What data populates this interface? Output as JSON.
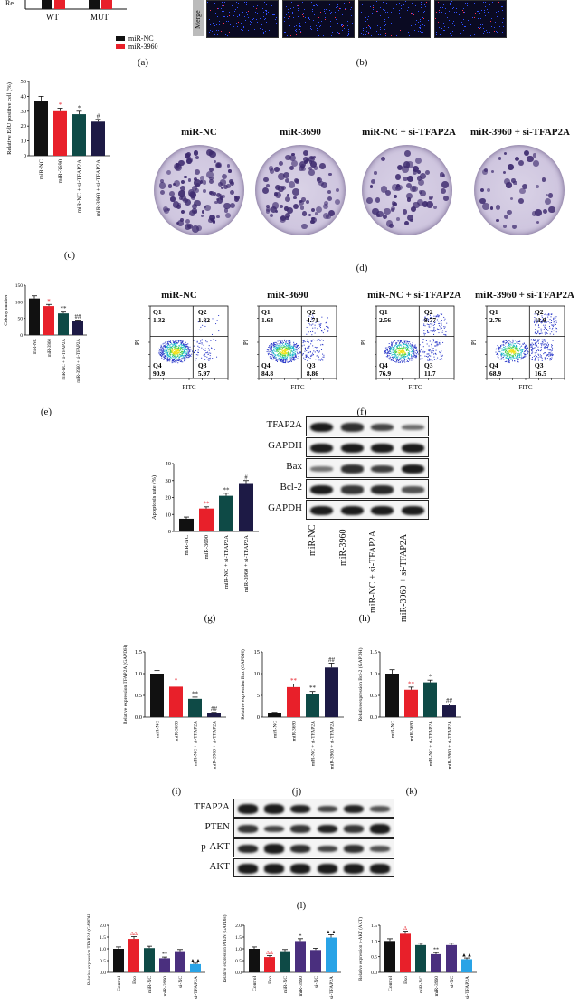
{
  "panel_labels": {
    "a": "(a)",
    "b": "(b)",
    "c": "(c)",
    "d": "(d)",
    "e": "(e)",
    "f": "(f)",
    "g": "(g)",
    "h": "(h)",
    "i": "(i)",
    "j": "(j)",
    "k": "(k)",
    "l": "(l)"
  },
  "colors": {
    "black": "#111111",
    "red": "#e8202a",
    "teal": "#0e4a46",
    "navy": "#1d1a45",
    "purple": "#4a2f7e",
    "blue": "#29a3e6"
  },
  "panel_a": {
    "categories": [
      "WT",
      "MUT"
    ],
    "legend": [
      "miR-NC",
      "miR-3960"
    ],
    "ylabel": "Re"
  },
  "panel_b": {
    "label": "Merge"
  },
  "panel_c": {
    "chart_data": {
      "type": "bar",
      "categories": [
        "miR-NC",
        "miR-3690",
        "miR-NC + si-TFAP2A",
        "miR-3960 + si-TFAP2A"
      ],
      "values": [
        37,
        30,
        28,
        23
      ],
      "errors": [
        3,
        2,
        2,
        1.5
      ],
      "sig": [
        "",
        "*",
        "*",
        "#"
      ],
      "ylabel": "Relative EdU positive cell (%)",
      "ylim": [
        0,
        50
      ],
      "yticks": [
        "0",
        "10",
        "20",
        "30",
        "40",
        "50"
      ]
    }
  },
  "panel_d": {
    "titles": [
      "miR-NC",
      "miR-3690",
      "miR-NC + si-TFAP2A",
      "miR-3960 + si-TFAP2A"
    ]
  },
  "panel_e": {
    "chart_data": {
      "type": "bar",
      "categories": [
        "miR-NC",
        "miR-3960",
        "miR-NC + si-TFAP2A",
        "miR-3960 + si-TFAP2A"
      ],
      "values": [
        110,
        87,
        65,
        42
      ],
      "errors": [
        8,
        5,
        4,
        3
      ],
      "sig": [
        "",
        "*",
        "**",
        "##"
      ],
      "ylabel": "Colony number",
      "ylim": [
        0,
        150
      ],
      "yticks": [
        "0",
        "50",
        "100",
        "150"
      ]
    }
  },
  "panel_f": {
    "titles": [
      "miR-NC",
      "miR-3690",
      "miR-NC + si-TFAP2A",
      "miR-3960 + si-TFAP2A"
    ],
    "xlabel": "FITC",
    "ylabel": "PI",
    "quadrants": [
      {
        "q1": "1.32",
        "q2": "1.82",
        "q3": "5.97",
        "q4": "90.9"
      },
      {
        "q1": "1.63",
        "q2": "4.71",
        "q3": "8.86",
        "q4": "84.8"
      },
      {
        "q1": "2.56",
        "q2": "8.77",
        "q3": "11.7",
        "q4": "76.9"
      },
      {
        "q1": "2.76",
        "q2": "11.9",
        "q3": "16.5",
        "q4": "68.9"
      }
    ],
    "qnames": [
      "Q1",
      "Q2",
      "Q3",
      "Q4"
    ]
  },
  "panel_g": {
    "chart_data": {
      "type": "bar",
      "categories": [
        "miR-NC",
        "miR-3690",
        "miR-NC + si-TFAP2A",
        "miR-3960 + si-TFAP2A"
      ],
      "values": [
        7.5,
        13.5,
        21,
        28
      ],
      "errors": [
        1,
        1,
        1.5,
        2
      ],
      "sig": [
        "",
        "**",
        "**",
        "#"
      ],
      "ylabel": "Apoptosis rate (%)",
      "ylim": [
        0,
        40
      ],
      "yticks": [
        "0",
        "10",
        "20",
        "30",
        "40"
      ]
    }
  },
  "panel_h": {
    "rows": [
      "TFAP2A",
      "GAPDH",
      "Bax",
      "Bcl-2",
      "GAPDH"
    ],
    "lanes": [
      "miR-NC",
      "miR-3960",
      "miR-NC + si-TFAP2A",
      "miR-3960 + si-TFAP2A"
    ]
  },
  "panel_i": {
    "chart_data": {
      "type": "bar",
      "categories": [
        "miR-NC",
        "miR-3690",
        "miR-NC + si-TFAP2A",
        "miR-3960 + si-TFAP2A"
      ],
      "values": [
        1.0,
        0.7,
        0.42,
        0.09
      ],
      "errors": [
        0.07,
        0.06,
        0.04,
        0.02
      ],
      "sig": [
        "",
        "*",
        "**",
        "##"
      ],
      "ylabel": "Relative expression TFAP2A (GAPDH)",
      "ylim": [
        0,
        1.5
      ],
      "yticks": [
        "0.0",
        "0.5",
        "1.0",
        "1.5"
      ]
    }
  },
  "panel_j": {
    "chart_data": {
      "type": "bar",
      "categories": [
        "miR-NC",
        "miR-3690",
        "miR-NC + si-TFAP2A",
        "miR-3960 + si-TFAP2A"
      ],
      "values": [
        1.0,
        6.9,
        5.3,
        11.4
      ],
      "errors": [
        0.1,
        0.7,
        0.6,
        1.0
      ],
      "sig": [
        "",
        "**",
        "**",
        "##"
      ],
      "ylabel": "Relative expression Bax (GAPDH)",
      "ylim": [
        0,
        15
      ],
      "yticks": [
        "0",
        "5",
        "10",
        "15"
      ]
    }
  },
  "panel_k": {
    "chart_data": {
      "type": "bar",
      "categories": [
        "miR-NC",
        "miR-3690",
        "miR-NC + si-TFAP2A",
        "miR-3960 + si-TFAP2A"
      ],
      "values": [
        1.0,
        0.63,
        0.8,
        0.27
      ],
      "errors": [
        0.09,
        0.06,
        0.05,
        0.03
      ],
      "sig": [
        "",
        "**",
        "*",
        "##"
      ],
      "ylabel": "Relative expression Bcl-2 (GAPDH)",
      "ylim": [
        0,
        1.5
      ],
      "yticks": [
        "0.0",
        "0.5",
        "1.0",
        "1.5"
      ]
    }
  },
  "panel_l": {
    "rows": [
      "TFAP2A",
      "PTEN",
      "p-AKT",
      "AKT"
    ]
  },
  "bottom_charts": [
    {
      "type": "bar",
      "categories": [
        "Control",
        "Exo",
        "miR-NC",
        "miR-3960",
        "si-NC",
        "si-TFAP2A"
      ],
      "values": [
        1.0,
        1.42,
        1.03,
        0.6,
        0.9,
        0.35
      ],
      "errors": [
        0.08,
        0.1,
        0.08,
        0.05,
        0.07,
        0.04
      ],
      "sig": [
        "",
        "ΔΔ",
        "",
        "**",
        "",
        "▲▲"
      ],
      "ylabel": "Relative expression TFAP2A (GAPDH)",
      "ylim": [
        0,
        2.0
      ],
      "yticks": [
        "0.0",
        "0.5",
        "1.0",
        "1.5",
        "2.0"
      ]
    },
    {
      "type": "bar",
      "categories": [
        "Control",
        "Exo",
        "miR-NC",
        "miR-3960",
        "si-NC",
        "si-TFAP2A"
      ],
      "values": [
        1.0,
        0.65,
        0.9,
        1.33,
        0.95,
        1.48
      ],
      "errors": [
        0.08,
        0.06,
        0.07,
        0.1,
        0.07,
        0.12
      ],
      "sig": [
        "",
        "ΔΔ",
        "",
        "*",
        "",
        "▲▲"
      ],
      "ylabel": "Relative expression PTEN (GAPDH)",
      "ylim": [
        0,
        2.0
      ],
      "yticks": [
        "0.0",
        "0.5",
        "1.0",
        "1.5",
        "2.0"
      ]
    },
    {
      "type": "bar",
      "categories": [
        "Control",
        "Exo",
        "miR-NC",
        "miR-3960",
        "si-NC",
        "si-TFAP2A"
      ],
      "values": [
        1.0,
        1.23,
        0.87,
        0.58,
        0.87,
        0.42
      ],
      "errors": [
        0.07,
        0.08,
        0.06,
        0.05,
        0.06,
        0.04
      ],
      "sig": [
        "",
        "Δ",
        "",
        "**",
        "",
        "▲▲"
      ],
      "ylabel": "Relative expression p-AKT (AKT)",
      "ylim": [
        0,
        1.5
      ],
      "yticks": [
        "0.0",
        "0.5",
        "1.0",
        "1.5"
      ]
    }
  ]
}
